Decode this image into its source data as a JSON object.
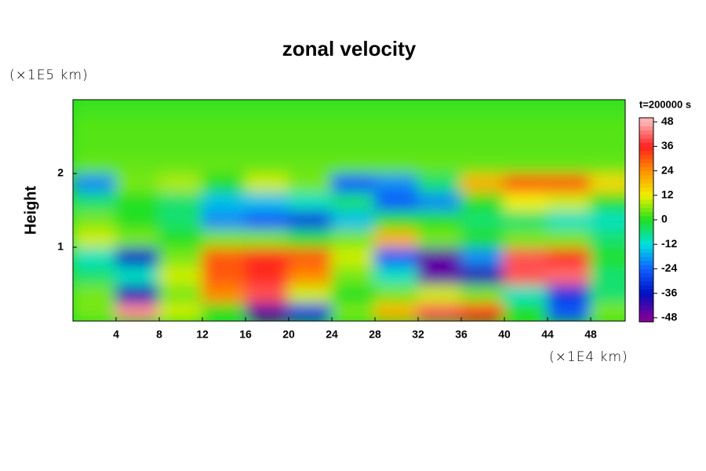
{
  "chart_data": {
    "type": "heatmap",
    "title": "zonal velocity",
    "y_label": "Height",
    "y_unit": "(×1E5 km)",
    "x_unit": "(×1E4 km)",
    "colorbar_title": "t=200000 s",
    "xlim": [
      0,
      51.2
    ],
    "ylim": [
      0,
      3
    ],
    "xticks": [
      4,
      8,
      12,
      16,
      20,
      24,
      28,
      32,
      36,
      40,
      44,
      48
    ],
    "yticks": [
      1,
      2
    ],
    "x": [
      2,
      6,
      10,
      14,
      18,
      22,
      26,
      30,
      34,
      38,
      42,
      46,
      50
    ],
    "y": [
      0.125,
      0.375,
      0.625,
      0.875,
      1.125,
      1.375,
      1.625,
      1.875,
      2.125,
      2.375,
      2.625,
      2.875
    ],
    "values": [
      [
        5,
        45,
        10,
        0,
        -45,
        -30,
        5,
        20,
        40,
        35,
        0,
        -25,
        5
      ],
      [
        5,
        -38,
        5,
        25,
        40,
        10,
        0,
        5,
        10,
        5,
        -10,
        -30,
        -5
      ],
      [
        -5,
        -10,
        10,
        30,
        35,
        25,
        5,
        -10,
        -45,
        -40,
        40,
        42,
        -5
      ],
      [
        -10,
        -35,
        5,
        30,
        35,
        30,
        10,
        -25,
        -45,
        -20,
        40,
        35,
        0
      ],
      [
        10,
        5,
        0,
        5,
        5,
        0,
        5,
        20,
        5,
        0,
        5,
        5,
        -5
      ],
      [
        5,
        0,
        -5,
        -20,
        -25,
        -30,
        -15,
        0,
        0,
        -5,
        -5,
        -10,
        -10
      ],
      [
        -5,
        0,
        -5,
        -15,
        -15,
        -10,
        -5,
        -25,
        -20,
        0,
        12,
        10,
        0
      ],
      [
        -20,
        5,
        8,
        0,
        10,
        5,
        -25,
        -20,
        -5,
        20,
        30,
        30,
        15
      ],
      [
        4,
        4,
        4,
        4,
        4,
        4,
        4,
        4,
        4,
        4,
        4,
        4,
        4
      ],
      [
        3,
        3,
        3,
        3,
        3,
        3,
        3,
        3,
        3,
        3,
        3,
        3,
        3
      ],
      [
        3,
        3,
        3,
        3,
        3,
        3,
        3,
        3,
        3,
        3,
        3,
        3,
        3
      ],
      [
        2,
        2,
        2,
        2,
        2,
        2,
        2,
        2,
        2,
        2,
        2,
        2,
        2
      ]
    ],
    "clim": [
      -50,
      50
    ],
    "cticks": [
      48,
      36,
      24,
      12,
      0,
      -12,
      -24,
      -36,
      -48
    ],
    "colormap": [
      [
        -48,
        "#80009a"
      ],
      [
        -36,
        "#0010c0"
      ],
      [
        -24,
        "#1060ff"
      ],
      [
        -12,
        "#00e0e0"
      ],
      [
        0,
        "#20e020"
      ],
      [
        12,
        "#f0f000"
      ],
      [
        24,
        "#ff9000"
      ],
      [
        36,
        "#ff2020"
      ],
      [
        48,
        "#ffb4b4"
      ]
    ]
  }
}
